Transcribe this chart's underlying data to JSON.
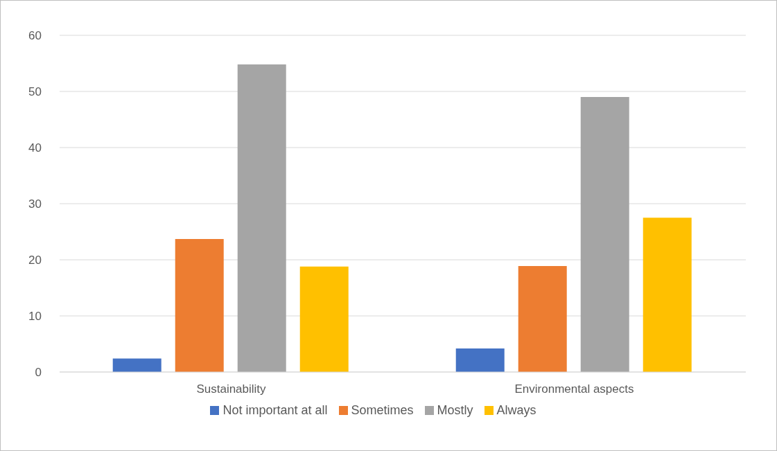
{
  "chart_data": {
    "type": "bar",
    "categories": [
      "Sustainability",
      "Environmental aspects"
    ],
    "series": [
      {
        "name": "Not important at all",
        "color": "#4472c4",
        "values": [
          2.4,
          4.2
        ]
      },
      {
        "name": "Sometimes",
        "color": "#ed7d31",
        "values": [
          23.7,
          18.9
        ]
      },
      {
        "name": "Mostly",
        "color": "#a5a5a5",
        "values": [
          54.8,
          49.0
        ]
      },
      {
        "name": "Always",
        "color": "#ffc000",
        "values": [
          18.8,
          27.5
        ]
      }
    ],
    "ylim": [
      0,
      60
    ],
    "yticks": [
      0,
      10,
      20,
      30,
      40,
      50,
      60
    ],
    "grid": "y",
    "legend": "bottom"
  }
}
